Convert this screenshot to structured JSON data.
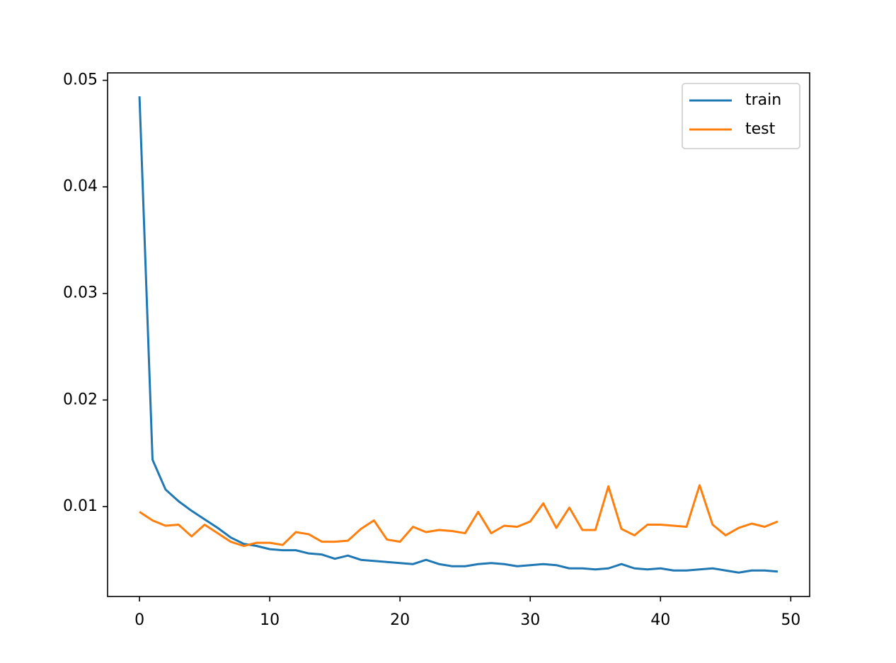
{
  "chart_data": {
    "type": "line",
    "x": [
      0,
      1,
      2,
      3,
      4,
      5,
      6,
      7,
      8,
      9,
      10,
      11,
      12,
      13,
      14,
      15,
      16,
      17,
      18,
      19,
      20,
      21,
      22,
      23,
      24,
      25,
      26,
      27,
      28,
      29,
      30,
      31,
      32,
      33,
      34,
      35,
      36,
      37,
      38,
      39,
      40,
      41,
      42,
      43,
      44,
      45,
      46,
      47,
      48,
      49
    ],
    "series": [
      {
        "name": "train",
        "color": "#1f77b4",
        "values": [
          0.0485,
          0.0144,
          0.0116,
          0.0105,
          0.0096,
          0.0088,
          0.008,
          0.0071,
          0.0065,
          0.0063,
          0.006,
          0.0059,
          0.0059,
          0.0056,
          0.0055,
          0.0051,
          0.0054,
          0.005,
          0.0049,
          0.0048,
          0.0047,
          0.0046,
          0.005,
          0.0046,
          0.0044,
          0.0044,
          0.0046,
          0.0047,
          0.0046,
          0.0044,
          0.0045,
          0.0046,
          0.0045,
          0.0042,
          0.0042,
          0.0041,
          0.0042,
          0.0046,
          0.0042,
          0.0041,
          0.0042,
          0.004,
          0.004,
          0.0041,
          0.0042,
          0.004,
          0.0038,
          0.004,
          0.004,
          0.0039
        ]
      },
      {
        "name": "test",
        "color": "#ff7f0e",
        "values": [
          0.0095,
          0.0087,
          0.0082,
          0.0083,
          0.0072,
          0.0083,
          0.0075,
          0.0067,
          0.0063,
          0.0066,
          0.0066,
          0.0064,
          0.0076,
          0.0074,
          0.0067,
          0.0067,
          0.0068,
          0.0079,
          0.0087,
          0.0069,
          0.0067,
          0.0081,
          0.0076,
          0.0078,
          0.0077,
          0.0075,
          0.0095,
          0.0075,
          0.0082,
          0.0081,
          0.0086,
          0.0103,
          0.008,
          0.0099,
          0.0078,
          0.0078,
          0.0119,
          0.0079,
          0.0073,
          0.0083,
          0.0083,
          0.0082,
          0.0081,
          0.012,
          0.0083,
          0.0073,
          0.008,
          0.0084,
          0.0081,
          0.0086
        ]
      }
    ],
    "xlim": [
      -2.45,
      51.45
    ],
    "xticks": [
      0,
      10,
      20,
      30,
      40,
      50
    ],
    "ylim": [
      0.00156,
      0.0507
    ],
    "yticks": [
      0.01,
      0.02,
      0.03,
      0.04,
      0.05
    ],
    "legend": "upper right"
  }
}
